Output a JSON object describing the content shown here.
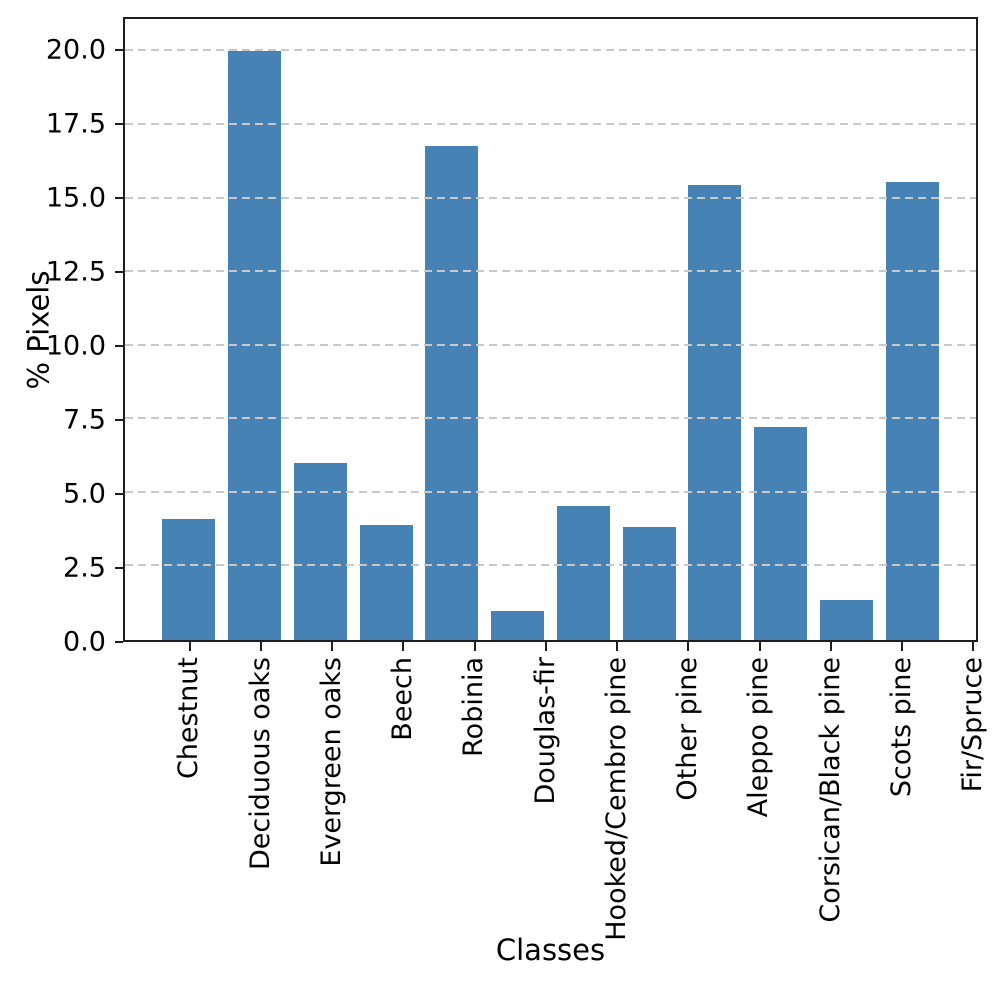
{
  "chart_data": {
    "type": "bar",
    "title": "",
    "xlabel": "Classes",
    "ylabel": "% Pixels",
    "categories": [
      "Chestnut",
      "Deciduous oaks",
      "Evergreen oaks",
      "Beech",
      "Robinia",
      "Douglas-fir",
      "Hooked/Cembro pine",
      "Other pine",
      "Aleppo pine",
      "Corsican/Black pine",
      "Scots pine",
      "Fir/Spruce"
    ],
    "values": [
      4.1,
      20.0,
      6.0,
      3.9,
      16.8,
      1.0,
      4.55,
      3.85,
      15.45,
      7.25,
      1.35,
      15.55
    ],
    "ylim": [
      0,
      21.1
    ],
    "yticks": [
      0.0,
      2.5,
      5.0,
      7.5,
      10.0,
      12.5,
      15.0,
      17.5,
      20.0
    ],
    "ytick_labels": [
      "0.0",
      "2.5",
      "5.0",
      "7.5",
      "10.0",
      "12.5",
      "15.0",
      "17.5",
      "20.0"
    ],
    "xtick_rotation": 90,
    "grid": "horizontal-dashed",
    "legend_position": "none",
    "bar_color": "#4682b4",
    "grid_color": "#c9c9c9",
    "spine_color": "#1f1f1f"
  }
}
